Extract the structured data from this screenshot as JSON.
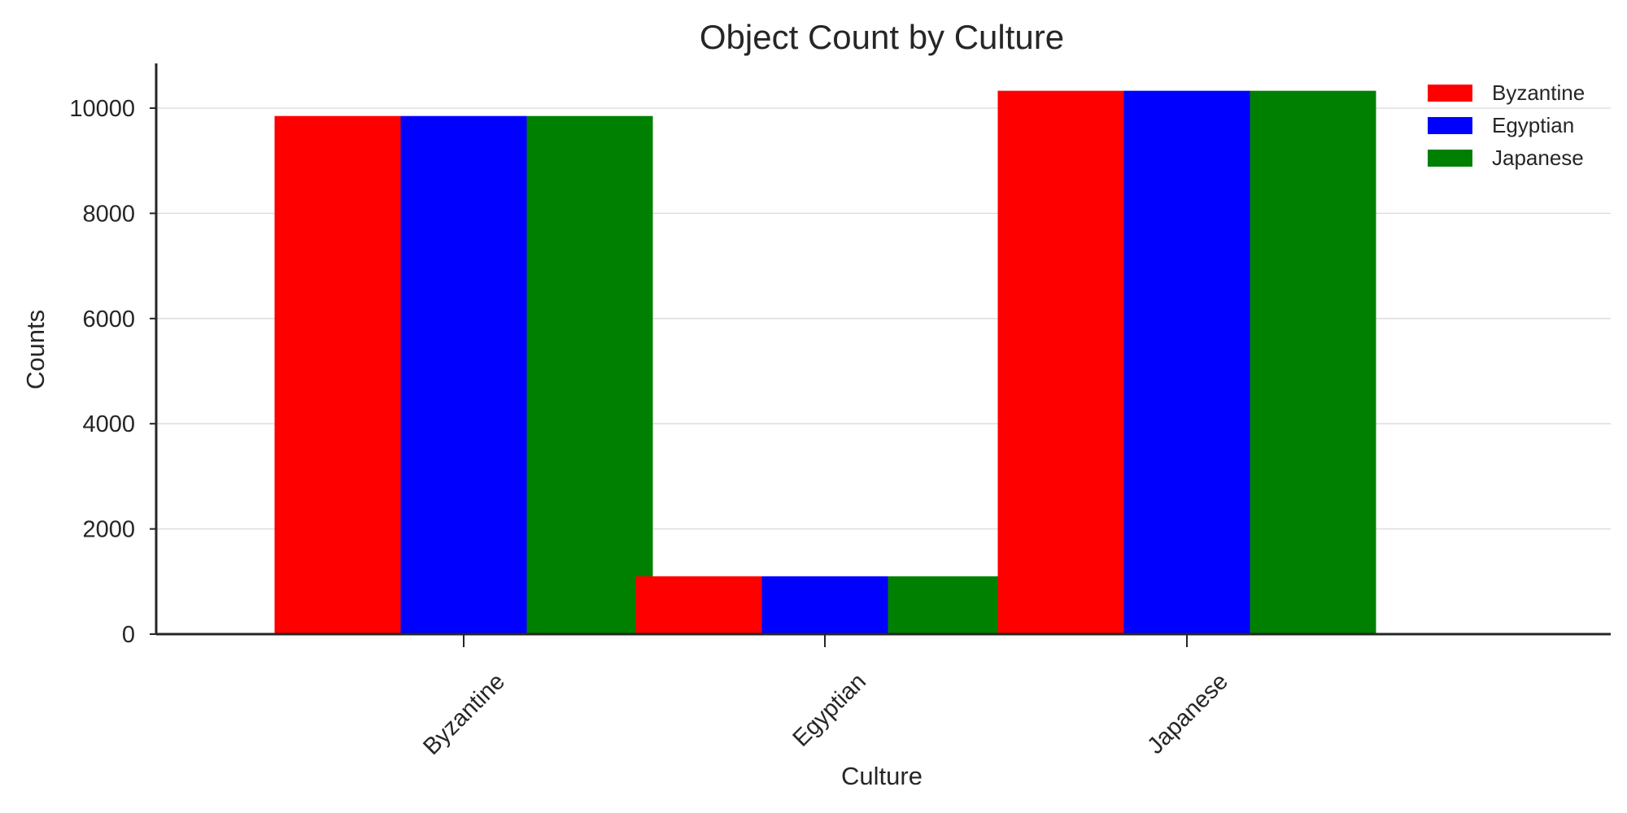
{
  "chart_data": {
    "type": "bar",
    "title": "Object Count by Culture",
    "xlabel": "Culture",
    "ylabel": "Counts",
    "categories": [
      "Byzantine",
      "Egyptian",
      "Japanese"
    ],
    "series": [
      {
        "name": "Byzantine",
        "color": "#ff0000",
        "values": [
          9850,
          1100,
          10330
        ]
      },
      {
        "name": "Egyptian",
        "color": "#0000ff",
        "values": [
          9850,
          1100,
          10330
        ]
      },
      {
        "name": "Japanese",
        "color": "#008000",
        "values": [
          9850,
          1100,
          10330
        ]
      }
    ],
    "ylim": [
      0,
      10850
    ],
    "yticks": [
      0,
      2000,
      4000,
      6000,
      8000,
      10000
    ],
    "grid": "y",
    "legend_position": "top-right"
  }
}
